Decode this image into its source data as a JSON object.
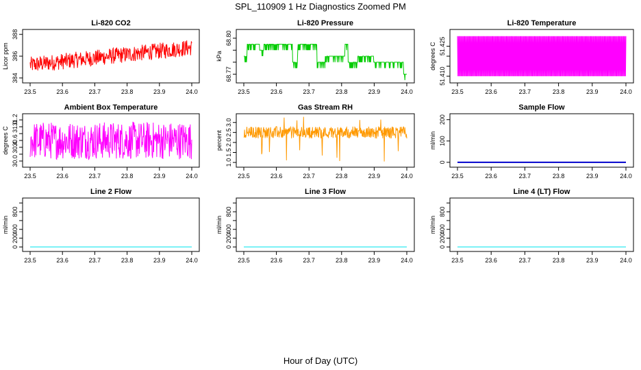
{
  "title": "SPL_110909  1 Hz Diagnostics Zoomed PM",
  "xlabel": "Hour of Day (UTC)",
  "colors": {
    "red": "#ff0000",
    "green": "#00cc00",
    "magenta": "#ff00ff",
    "orange": "#ff9900",
    "blue": "#0000cc",
    "cyan": "#00e5ee"
  },
  "chart_data": [
    {
      "type": "line",
      "title": "Li-820 CO2",
      "ylabel": "Licor ppm",
      "color": "#ff0000",
      "xlim": [
        23.5,
        24.0
      ],
      "ylim": [
        383.8,
        388.2
      ],
      "x_ticks": [
        "23.5",
        "23.6",
        "23.7",
        "23.8",
        "23.9",
        "24.0"
      ],
      "y_ticks": [
        384,
        386,
        388
      ],
      "y_tick_labels": [
        "384",
        "386",
        "388"
      ],
      "series": [
        {
          "name": "CO2",
          "trend_start": 385.2,
          "trend_end": 386.8,
          "noise": 0.75
        }
      ]
    },
    {
      "type": "line",
      "title": "Li-820 Pressure",
      "ylabel": "kPa",
      "color": "#00cc00",
      "xlim": [
        23.5,
        24.0
      ],
      "ylim": [
        68.765,
        68.805
      ],
      "x_ticks": [
        "23.5",
        "23.6",
        "23.7",
        "23.8",
        "23.9",
        "24.0"
      ],
      "y_ticks": [
        68.77,
        68.78,
        68.79,
        68.8
      ],
      "y_tick_labels": [
        "68.77",
        "",
        "",
        "68.80"
      ],
      "series": [
        {
          "name": "Pressure",
          "levels": [
            68.795,
            68.79,
            68.785,
            68.78,
            68.775,
            68.77
          ]
        }
      ]
    },
    {
      "type": "line",
      "title": "Li-820 Temperature",
      "ylabel": "degrees C",
      "color": "#ff00ff",
      "xlim": [
        23.5,
        24.0
      ],
      "ylim": [
        51.408,
        51.432
      ],
      "x_ticks": [
        "23.5",
        "23.6",
        "23.7",
        "23.8",
        "23.9",
        "24.0"
      ],
      "y_ticks": [
        51.41,
        51.415,
        51.42,
        51.425
      ],
      "y_tick_labels": [
        "51.410",
        "",
        "",
        "51.425"
      ],
      "series": [
        {
          "name": "Temperature",
          "low": 51.41,
          "high": 51.43
        }
      ]
    },
    {
      "type": "line",
      "title": "Ambient Box Temperature",
      "ylabel": "degrees C",
      "color": "#ff00ff",
      "xlim": [
        23.5,
        24.0
      ],
      "ylim": [
        29.9,
        31.3
      ],
      "x_ticks": [
        "23.5",
        "23.6",
        "23.7",
        "23.8",
        "23.9",
        "24.0"
      ],
      "y_ticks": [
        30.0,
        30.2,
        30.4,
        30.6,
        30.8,
        31.0,
        31.2
      ],
      "y_tick_labels": [
        "30.0",
        "",
        "30.4",
        "30.6",
        "",
        "31.0",
        "31.2"
      ],
      "series": [
        {
          "name": "Box Temperature",
          "low": 30.05,
          "high": 31.15
        }
      ]
    },
    {
      "type": "scatter",
      "title": "Gas Stream RH",
      "ylabel": "percent",
      "color": "#ff9900",
      "xlim": [
        23.5,
        24.0
      ],
      "ylim": [
        0.9,
        3.3
      ],
      "x_ticks": [
        "23.5",
        "23.6",
        "23.7",
        "23.8",
        "23.9",
        "24.0"
      ],
      "y_ticks": [
        1.0,
        1.5,
        2.0,
        2.5,
        3.0
      ],
      "y_tick_labels": [
        "1.0",
        "1.5",
        "2.0",
        "2.5",
        "3.0"
      ],
      "series": [
        {
          "name": "RH",
          "low": 2.2,
          "high": 2.8
        }
      ]
    },
    {
      "type": "line",
      "title": "Sample Flow",
      "ylabel": "ml/min",
      "color": "#0000cc",
      "xlim": [
        23.5,
        24.0
      ],
      "ylim": [
        -10,
        215
      ],
      "x_ticks": [
        "23.5",
        "23.6",
        "23.7",
        "23.8",
        "23.9",
        "24.0"
      ],
      "y_ticks": [
        0,
        100,
        200
      ],
      "y_tick_labels": [
        "0",
        "100",
        "200"
      ],
      "series": [
        {
          "name": "Sample Flow",
          "value": 0
        }
      ]
    },
    {
      "type": "line",
      "title": "Line 2 Flow",
      "ylabel": "ml/min",
      "color": "#00e5ee",
      "xlim": [
        23.5,
        24.0
      ],
      "ylim": [
        -40,
        1050
      ],
      "x_ticks": [
        "23.5",
        "23.6",
        "23.7",
        "23.8",
        "23.9",
        "24.0"
      ],
      "y_ticks": [
        0,
        200,
        400,
        600,
        800,
        1000
      ],
      "y_tick_labels": [
        "0",
        "200",
        "400",
        "",
        "800",
        ""
      ],
      "series": [
        {
          "name": "Line 2 Flow",
          "value": 0
        }
      ]
    },
    {
      "type": "line",
      "title": "Line 3 Flow",
      "ylabel": "ml/min",
      "color": "#00e5ee",
      "xlim": [
        23.5,
        24.0
      ],
      "ylim": [
        -40,
        1050
      ],
      "x_ticks": [
        "23.5",
        "23.6",
        "23.7",
        "23.8",
        "23.9",
        "24.0"
      ],
      "y_ticks": [
        0,
        200,
        400,
        600,
        800,
        1000
      ],
      "y_tick_labels": [
        "0",
        "200",
        "400",
        "",
        "800",
        ""
      ],
      "series": [
        {
          "name": "Line 3 Flow",
          "value": 0
        }
      ]
    },
    {
      "type": "line",
      "title": "Line 4 (LT) Flow",
      "ylabel": "ml/min",
      "color": "#00e5ee",
      "xlim": [
        23.5,
        24.0
      ],
      "ylim": [
        -40,
        1050
      ],
      "x_ticks": [
        "23.5",
        "23.6",
        "23.7",
        "23.8",
        "23.9",
        "24.0"
      ],
      "y_ticks": [
        0,
        200,
        400,
        600,
        800,
        1000
      ],
      "y_tick_labels": [
        "0",
        "200",
        "400",
        "",
        "800",
        ""
      ],
      "series": [
        {
          "name": "Line 4 Flow",
          "value": 0
        }
      ]
    }
  ]
}
